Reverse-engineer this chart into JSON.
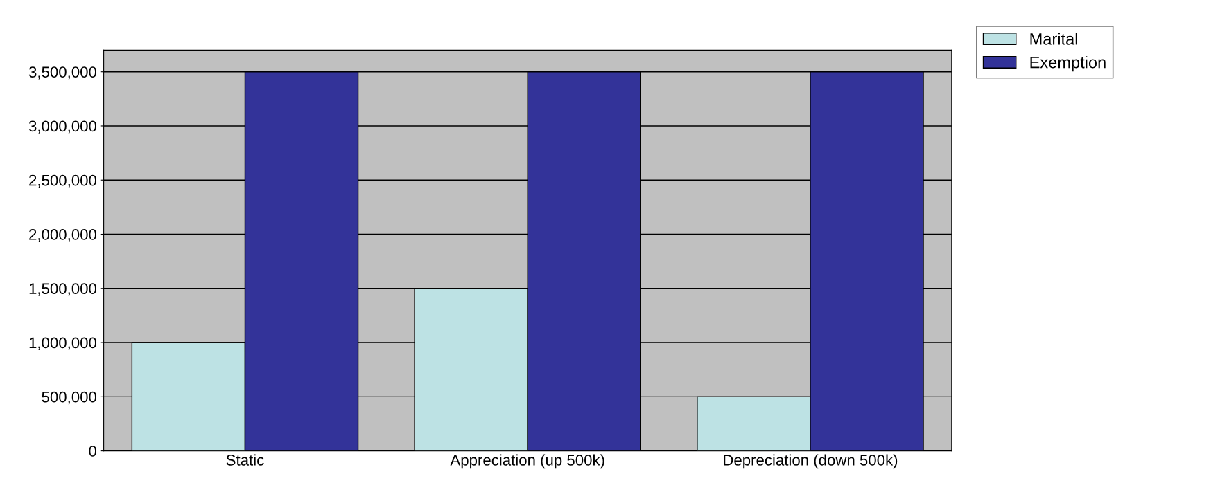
{
  "chart_data": {
    "type": "bar",
    "categories": [
      "Static",
      "Appreciation (up 500k)",
      "Depreciation (down 500k)"
    ],
    "series": [
      {
        "name": "Marital",
        "color": "#bde2e4",
        "values": [
          1000000,
          1500000,
          500000
        ]
      },
      {
        "name": "Exemption",
        "color": "#333399",
        "values": [
          3500000,
          3500000,
          3500000
        ]
      }
    ],
    "ylim": [
      0,
      3700000
    ],
    "yticks": [
      0,
      {
        "value": 500000,
        "label": "500,000"
      },
      {
        "value": 1000000,
        "label": "1,000,000"
      },
      {
        "value": 1500000,
        "label": "1,500,000"
      },
      {
        "value": 2000000,
        "label": "2,000,000"
      },
      {
        "value": 2500000,
        "label": "2,500,000"
      },
      {
        "value": 3000000,
        "label": "3,000,000"
      },
      {
        "value": 3500000,
        "label": "3,500,000"
      }
    ],
    "grid": "y",
    "legend": "right"
  }
}
